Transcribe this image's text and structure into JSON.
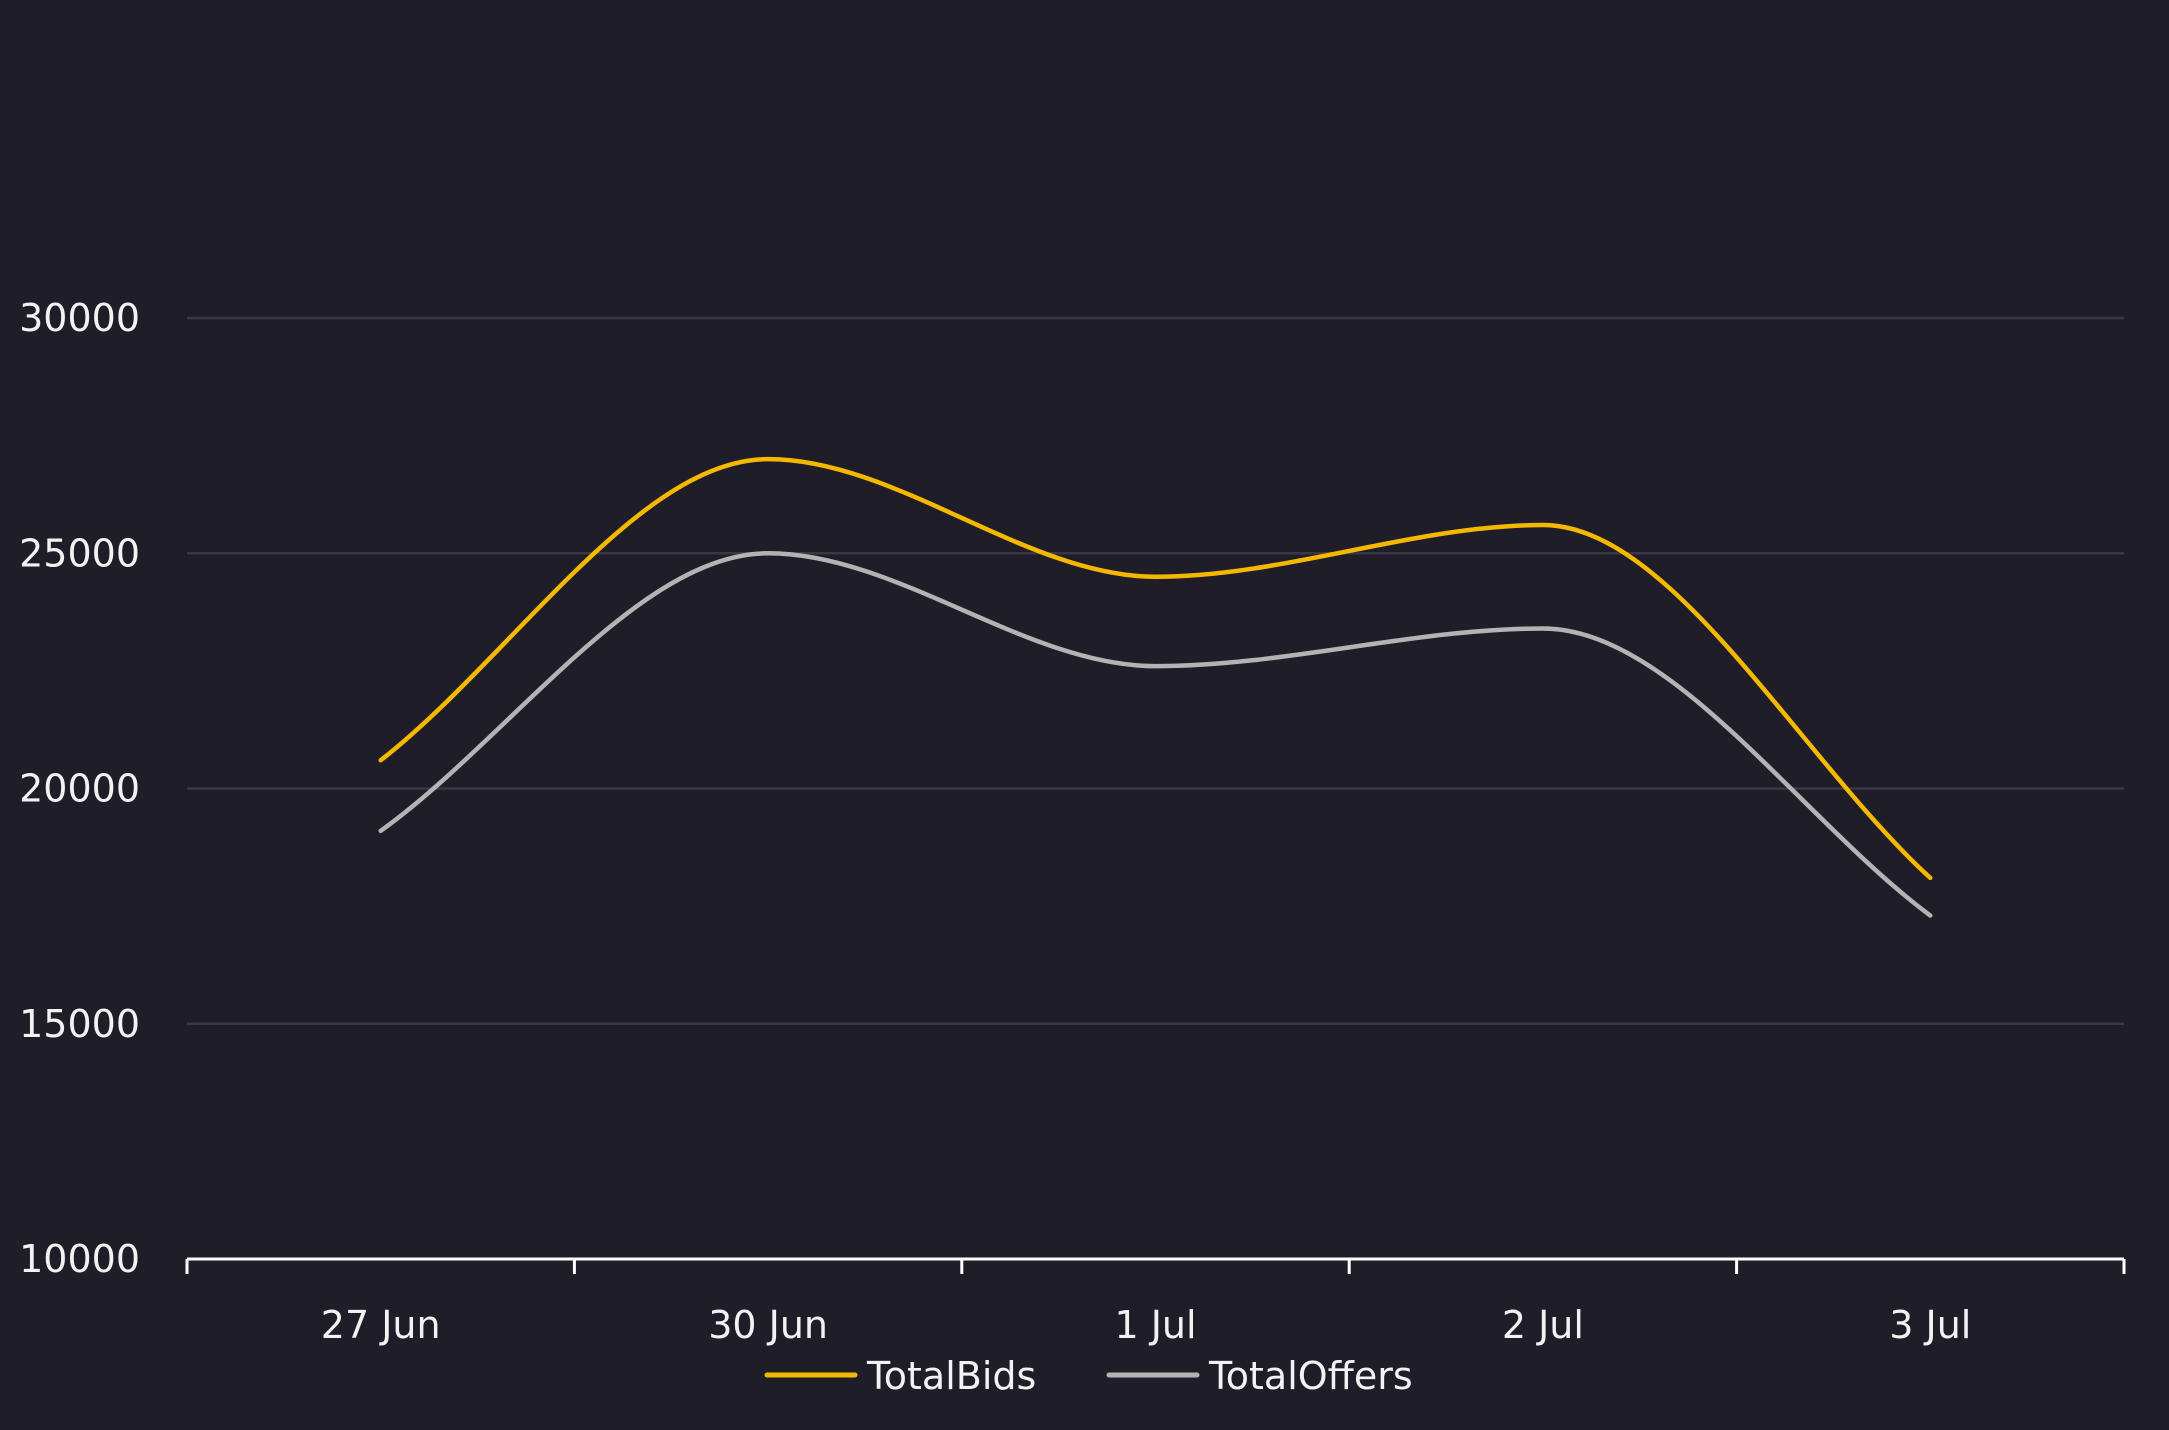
{
  "colors": {
    "background": "#1f1d28",
    "gridline": "#3a3844",
    "axis": "#ffffff",
    "text": "#f2f2f2"
  },
  "chart_data": {
    "type": "line",
    "categories": [
      "27 Jun",
      "30 Jun",
      "1 Jul",
      "2 Jul",
      "3 Jul"
    ],
    "series": [
      {
        "name": "TotalBids",
        "color": "#f5b800",
        "values": [
          20600,
          27000,
          24500,
          25600,
          18100
        ]
      },
      {
        "name": "TotalOffers",
        "color": "#b3b3b3",
        "values": [
          19100,
          25000,
          22600,
          23400,
          17300
        ]
      }
    ],
    "yticks": [
      "10000",
      "15000",
      "20000",
      "25000",
      "30000"
    ],
    "ylim": [
      10000,
      30000
    ],
    "title": "",
    "xlabel": "",
    "ylabel": "",
    "grid": true,
    "legend": "bottom-center"
  }
}
